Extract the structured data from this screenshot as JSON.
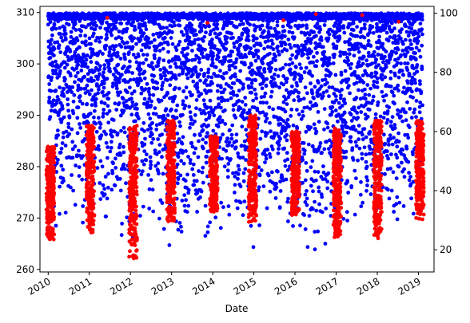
{
  "chart_data": {
    "type": "scatter",
    "title": "",
    "xlabel": "Date",
    "ylabel_left": "",
    "ylabel_right": "",
    "x_ticks": [
      "2010",
      "2011",
      "2012",
      "2013",
      "2014",
      "2015",
      "2016",
      "2017",
      "2018",
      "2019"
    ],
    "x_range": [
      "2009-10-20",
      "2019-05-20"
    ],
    "y_left": {
      "ticks": [
        260,
        270,
        280,
        290,
        300,
        310
      ],
      "range": [
        259.5,
        311.2
      ]
    },
    "y_right": {
      "ticks": [
        20,
        40,
        60,
        80,
        100
      ],
      "range": [
        12.5,
        102.3
      ]
    },
    "grid": false,
    "legend": "none",
    "series": [
      {
        "axis": "right",
        "color": "#0000ff",
        "description_values": "dense daily band; lower envelope by season (date, lower value)",
        "lower_envelope": [
          [
            "2010-01-01",
            24
          ],
          [
            "2010-07-01",
            30
          ],
          [
            "2011-01-01",
            28
          ],
          [
            "2011-07-01",
            25
          ],
          [
            "2012-01-01",
            22
          ],
          [
            "2012-07-01",
            30
          ],
          [
            "2013-01-01",
            20
          ],
          [
            "2013-07-01",
            24
          ],
          [
            "2014-01-01",
            22
          ],
          [
            "2014-07-01",
            30
          ],
          [
            "2015-01-01",
            17
          ],
          [
            "2015-07-01",
            28
          ],
          [
            "2016-01-01",
            24
          ],
          [
            "2016-07-01",
            17
          ],
          [
            "2017-01-01",
            26
          ],
          [
            "2017-07-01",
            30
          ],
          [
            "2018-01-01",
            28
          ],
          [
            "2018-07-01",
            30
          ],
          [
            "2019-01-01",
            30
          ]
        ],
        "upper_value": 100
      },
      {
        "axis": "left",
        "color": "#ff0000",
        "clusters": [
          {
            "center": "2010-01-20",
            "low": 265.5,
            "high": 284,
            "spikes": []
          },
          {
            "center": "2011-01-10",
            "low": 267,
            "high": 288,
            "spikes": [
              [
                "2011-06-10",
                309
              ]
            ]
          },
          {
            "center": "2012-01-25",
            "low": 262,
            "high": 288,
            "spikes": []
          },
          {
            "center": "2012-12-25",
            "low": 269,
            "high": 289,
            "spikes": [
              [
                "2013-11-15",
                308
              ]
            ]
          },
          {
            "center": "2014-01-10",
            "low": 271,
            "high": 286,
            "spikes": []
          },
          {
            "center": "2014-12-20",
            "low": 268.5,
            "high": 290,
            "spikes": []
          },
          {
            "center": "2016-01-05",
            "low": 270,
            "high": 287,
            "spikes": [
              [
                "2015-09-20",
                308.5
              ],
              [
                "2016-07-05",
                309.7
              ],
              [
                "2017-08-20",
                309.5
              ]
            ]
          },
          {
            "center": "2017-01-10",
            "low": 266,
            "high": 287.5,
            "spikes": []
          },
          {
            "center": "2018-01-05",
            "low": 265,
            "high": 289,
            "spikes": [
              [
                "2018-07-10",
                308.2
              ]
            ]
          },
          {
            "center": "2019-01-15",
            "low": 269.5,
            "high": 289,
            "spikes": []
          }
        ]
      }
    ]
  }
}
